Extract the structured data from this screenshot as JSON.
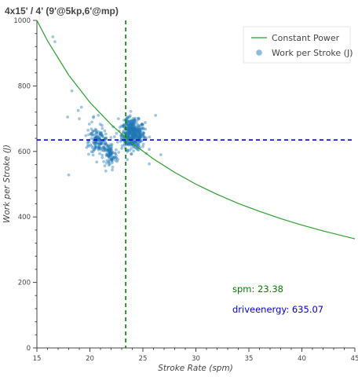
{
  "chart_data": {
    "type": "scatter",
    "title": "4x15' / 4' (9'@5kp,6'@mp)",
    "xlabel": "Stroke Rate (spm)",
    "ylabel": "Work per Stroke (J)",
    "xlim": [
      15,
      45
    ],
    "ylim": [
      0,
      1000
    ],
    "xticks": [
      "15",
      "20",
      "25",
      "30",
      "35",
      "40",
      "45"
    ],
    "yticks": [
      "0",
      "200",
      "400",
      "600",
      "800",
      "1000"
    ],
    "grid": false,
    "legend_position": "top-right",
    "legend": [
      {
        "label": "Constant Power",
        "kind": "line",
        "color": "#2ca02c"
      },
      {
        "label": "Work per Stroke (J)",
        "kind": "marker",
        "color": "#1f77b4"
      }
    ],
    "series": [
      {
        "name": "Constant Power",
        "kind": "curve",
        "color": "#2ca02c",
        "x": [
          15,
          16,
          18,
          20,
          22,
          24,
          26,
          28,
          30,
          32,
          34,
          36,
          38,
          40,
          42,
          45
        ],
        "y": [
          1000,
          938,
          833,
          750,
          682,
          625,
          577,
          536,
          500,
          469,
          441,
          417,
          395,
          375,
          357,
          333
        ]
      },
      {
        "name": "Work per Stroke (J)",
        "kind": "scatter",
        "color": "#1f77b4",
        "clusters": [
          {
            "x": 24.1,
            "y": 650,
            "sx": 0.55,
            "sy": 22,
            "n": 380
          },
          {
            "x": 23.7,
            "y": 675,
            "sx": 0.35,
            "sy": 14,
            "n": 60
          },
          {
            "x": 20.9,
            "y": 632,
            "sx": 0.45,
            "sy": 16,
            "n": 120
          },
          {
            "x": 21.9,
            "y": 588,
            "sx": 0.35,
            "sy": 20,
            "n": 90
          },
          {
            "x": 20.4,
            "y": 660,
            "sx": 0.5,
            "sy": 25,
            "n": 25
          }
        ],
        "outliers": [
          {
            "x": 16.5,
            "y": 950
          },
          {
            "x": 16.7,
            "y": 935
          },
          {
            "x": 18.3,
            "y": 785
          },
          {
            "x": 19.2,
            "y": 735
          },
          {
            "x": 18.9,
            "y": 725
          },
          {
            "x": 17.9,
            "y": 705
          },
          {
            "x": 19.0,
            "y": 700
          },
          {
            "x": 18.0,
            "y": 528
          },
          {
            "x": 19.7,
            "y": 612
          },
          {
            "x": 26.2,
            "y": 710
          },
          {
            "x": 26.7,
            "y": 590
          },
          {
            "x": 25.6,
            "y": 562
          },
          {
            "x": 22.7,
            "y": 700
          },
          {
            "x": 20.8,
            "y": 710
          },
          {
            "x": 21.5,
            "y": 540
          }
        ]
      }
    ],
    "reference_lines": [
      {
        "axis": "x",
        "value": 23.38,
        "color": "#008000",
        "style": "dashed"
      },
      {
        "axis": "y",
        "value": 635.07,
        "color": "#0000cc",
        "style": "dashed"
      }
    ],
    "annotations": [
      {
        "text": "spm:  23.38",
        "x": 33.3,
        "y": 175,
        "color": "#008000"
      },
      {
        "text": "driveenergy: 635.07",
        "x": 33.3,
        "y": 112,
        "color": "#0000cc"
      }
    ]
  }
}
